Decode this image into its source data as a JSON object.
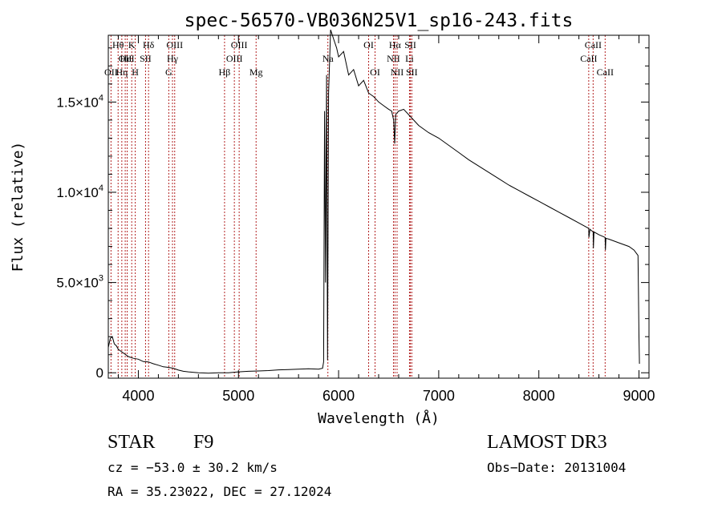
{
  "chart_data": {
    "type": "line",
    "title": "spec-56570-VB036N25V1_sp16-243.fits",
    "xlabel": "Wavelength (Å)",
    "ylabel": "Flux (relative)",
    "xlim": [
      3700,
      9100
    ],
    "ylim": [
      -300,
      18700
    ],
    "xticks": [
      {
        "value": 4000,
        "label": "4000"
      },
      {
        "value": 5000,
        "label": "5000"
      },
      {
        "value": 6000,
        "label": "6000"
      },
      {
        "value": 7000,
        "label": "7000"
      },
      {
        "value": 8000,
        "label": "8000"
      },
      {
        "value": 9000,
        "label": "9000"
      }
    ],
    "yticks": [
      {
        "value": 0,
        "mantissa": "0",
        "exp": ""
      },
      {
        "value": 5000,
        "mantissa": "5.0×10",
        "exp": "3"
      },
      {
        "value": 10000,
        "mantissa": "1.0×10",
        "exp": "4"
      },
      {
        "value": 15000,
        "mantissa": "1.5×10",
        "exp": "4"
      }
    ],
    "series": [
      {
        "name": "flux",
        "points": [
          [
            3700,
            1400
          ],
          [
            3720,
            1900
          ],
          [
            3740,
            2000
          ],
          [
            3760,
            1600
          ],
          [
            3780,
            1500
          ],
          [
            3800,
            1300
          ],
          [
            3850,
            1100
          ],
          [
            3900,
            900
          ],
          [
            3950,
            800
          ],
          [
            4000,
            750
          ],
          [
            4050,
            620
          ],
          [
            4100,
            600
          ],
          [
            4150,
            500
          ],
          [
            4200,
            420
          ],
          [
            4250,
            330
          ],
          [
            4300,
            300
          ],
          [
            4350,
            250
          ],
          [
            4400,
            150
          ],
          [
            4450,
            80
          ],
          [
            4500,
            50
          ],
          [
            4600,
            0
          ],
          [
            4700,
            -20
          ],
          [
            4800,
            0
          ],
          [
            4900,
            0
          ],
          [
            5000,
            50
          ],
          [
            5100,
            80
          ],
          [
            5200,
            100
          ],
          [
            5300,
            120
          ],
          [
            5400,
            160
          ],
          [
            5500,
            180
          ],
          [
            5600,
            200
          ],
          [
            5700,
            220
          ],
          [
            5800,
            200
          ],
          [
            5840,
            250
          ],
          [
            5850,
            600
          ],
          [
            5860,
            14500
          ],
          [
            5870,
            5000
          ],
          [
            5880,
            16500
          ],
          [
            5890,
            700
          ],
          [
            5900,
            15500
          ],
          [
            5920,
            19000
          ],
          [
            5950,
            18500
          ],
          [
            5980,
            18000
          ],
          [
            6000,
            17500
          ],
          [
            6050,
            17800
          ],
          [
            6100,
            16500
          ],
          [
            6150,
            16800
          ],
          [
            6200,
            15900
          ],
          [
            6250,
            16200
          ],
          [
            6300,
            15500
          ],
          [
            6350,
            15300
          ],
          [
            6400,
            15000
          ],
          [
            6450,
            14800
          ],
          [
            6500,
            14600
          ],
          [
            6530,
            14500
          ],
          [
            6550,
            14000
          ],
          [
            6560,
            12700
          ],
          [
            6570,
            14300
          ],
          [
            6600,
            14500
          ],
          [
            6650,
            14600
          ],
          [
            6700,
            14300
          ],
          [
            6750,
            14000
          ],
          [
            6800,
            13700
          ],
          [
            6900,
            13300
          ],
          [
            7000,
            13000
          ],
          [
            7100,
            12600
          ],
          [
            7200,
            12200
          ],
          [
            7300,
            11800
          ],
          [
            7400,
            11450
          ],
          [
            7500,
            11100
          ],
          [
            7600,
            10750
          ],
          [
            7700,
            10400
          ],
          [
            7800,
            10100
          ],
          [
            7900,
            9800
          ],
          [
            8000,
            9500
          ],
          [
            8100,
            9200
          ],
          [
            8200,
            8900
          ],
          [
            8300,
            8600
          ],
          [
            8400,
            8300
          ],
          [
            8498,
            8000
          ],
          [
            8500,
            7500
          ],
          [
            8510,
            7950
          ],
          [
            8542,
            7800
          ],
          [
            8545,
            6900
          ],
          [
            8550,
            7800
          ],
          [
            8600,
            7650
          ],
          [
            8662,
            7500
          ],
          [
            8665,
            6800
          ],
          [
            8670,
            7450
          ],
          [
            8700,
            7400
          ],
          [
            8800,
            7200
          ],
          [
            8900,
            7000
          ],
          [
            8950,
            6800
          ],
          [
            8990,
            6500
          ],
          [
            9000,
            2000
          ],
          [
            9005,
            500
          ]
        ]
      }
    ],
    "emission_lines": [
      {
        "wavelength": 3727,
        "label": "OII",
        "row": 2
      },
      {
        "wavelength": 3798,
        "label": "Hθ",
        "row": 0
      },
      {
        "wavelength": 3835,
        "label": "Hη",
        "row": 2
      },
      {
        "wavelength": 3869,
        "label": "OII",
        "row": 1
      },
      {
        "wavelength": 3889,
        "label": "HeI",
        "row": 1
      },
      {
        "wavelength": 3934,
        "label": "K",
        "row": 0
      },
      {
        "wavelength": 3969,
        "label": "H",
        "row": 2
      },
      {
        "wavelength": 4072,
        "label": "SII",
        "row": 1
      },
      {
        "wavelength": 4102,
        "label": "Hδ",
        "row": 0
      },
      {
        "wavelength": 4304,
        "label": "G",
        "row": 2
      },
      {
        "wavelength": 4341,
        "label": "Hγ",
        "row": 1
      },
      {
        "wavelength": 4363,
        "label": "OIII",
        "row": 0
      },
      {
        "wavelength": 4861,
        "label": "Hβ",
        "row": 2
      },
      {
        "wavelength": 4959,
        "label": "OIII",
        "row": 1
      },
      {
        "wavelength": 5007,
        "label": "OIII",
        "row": 0
      },
      {
        "wavelength": 5176,
        "label": "Mg",
        "row": 2
      },
      {
        "wavelength": 5893,
        "label": "Na",
        "row": 1
      },
      {
        "wavelength": 6300,
        "label": "OI",
        "row": 0
      },
      {
        "wavelength": 6364,
        "label": "OI",
        "row": 2
      },
      {
        "wavelength": 6548,
        "label": "NII",
        "row": 1
      },
      {
        "wavelength": 6563,
        "label": "Hα",
        "row": 0
      },
      {
        "wavelength": 6584,
        "label": "NII",
        "row": 2
      },
      {
        "wavelength": 6708,
        "label": "Li",
        "row": 1
      },
      {
        "wavelength": 6717,
        "label": "SII",
        "row": 0
      },
      {
        "wavelength": 6731,
        "label": "SII",
        "row": 2
      },
      {
        "wavelength": 8498,
        "label": "CaII",
        "row": 1
      },
      {
        "wavelength": 8542,
        "label": "CaII",
        "row": 0
      },
      {
        "wavelength": 8662,
        "label": "CaII",
        "row": 2
      }
    ]
  },
  "info": {
    "class": "STAR",
    "subclass": "F9",
    "survey": "LAMOST DR3",
    "cz": "cz = −53.0 ± 30.2 km/s",
    "obs_date": "Obs−Date: 20131004",
    "coords": "RA =  35.23022, DEC =  27.12024"
  },
  "colors": {
    "line_marker": "#b22222",
    "spectrum": "#000000"
  }
}
